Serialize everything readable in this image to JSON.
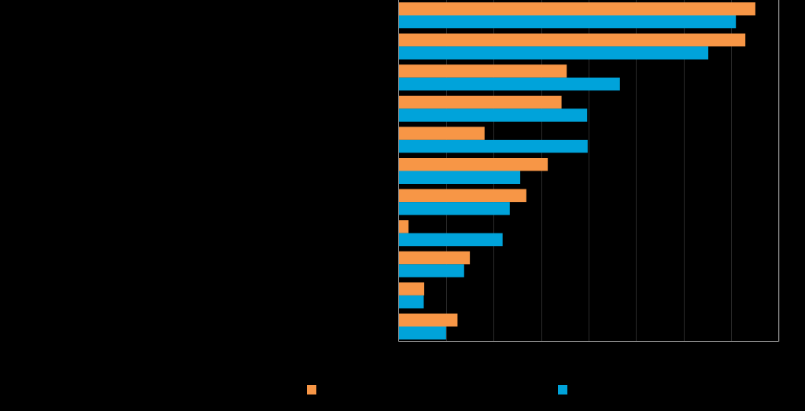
{
  "chart_data": {
    "type": "bar",
    "orientation": "horizontal",
    "title": "",
    "xlabel": "",
    "ylabel": "",
    "categories": [
      "",
      "",
      "",
      "",
      "",
      "",
      "",
      "",
      "",
      "",
      ""
    ],
    "series": [
      {
        "values": [
          75.1,
          73.0,
          35.4,
          34.3,
          18.1,
          31.4,
          26.9,
          2.1,
          15.0,
          5.4,
          12.4
        ]
      },
      {
        "values": [
          71.0,
          65.2,
          46.6,
          39.7,
          39.8,
          25.6,
          23.4,
          21.9,
          13.8,
          5.3,
          10.0
        ]
      }
    ],
    "xlim": [
      0,
      80
    ],
    "x_tick_step": 10,
    "grid": "vertical",
    "legend_position": "bottom",
    "colors": {
      "series": [
        "#F79646",
        "#00A3DA"
      ],
      "grid": "#2b2b2b",
      "axis": "#8c8c8c",
      "background": "#000000"
    }
  }
}
